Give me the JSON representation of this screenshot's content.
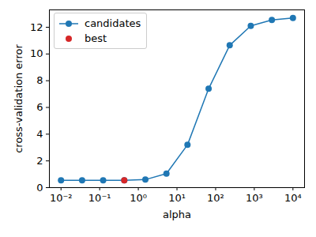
{
  "chart_data": {
    "type": "line",
    "x_label": "alpha",
    "y_label": "cross-validation error",
    "log": "x",
    "grid": false,
    "legend": "upper left",
    "xlim": [
      0.005,
      19953
    ],
    "ylim": [
      0,
      13.3
    ],
    "xticks": [
      {
        "value": 0.01,
        "label": "10⁻²"
      },
      {
        "value": 0.1,
        "label": "10⁻¹"
      },
      {
        "value": 1,
        "label": "10⁰"
      },
      {
        "value": 10,
        "label": "10¹"
      },
      {
        "value": 100,
        "label": "10²"
      },
      {
        "value": 1000,
        "label": "10³"
      },
      {
        "value": 10000,
        "label": "10⁴"
      }
    ],
    "yticks": [
      0,
      2,
      4,
      6,
      8,
      10,
      12
    ],
    "series": [
      {
        "name": "candidates",
        "type": "line",
        "marker": "o",
        "color": "#1f77b4",
        "x": [
          0.01,
          0.0351,
          0.123,
          0.433,
          1.52,
          5.34,
          18.7,
          65.8,
          231,
          811,
          2848,
          10000
        ],
        "values": [
          0.55,
          0.55,
          0.55,
          0.55,
          0.6,
          1.05,
          3.2,
          7.4,
          10.65,
          12.1,
          12.55,
          12.7
        ]
      },
      {
        "name": "best",
        "type": "scatter",
        "marker": "o",
        "color": "#d62728",
        "x": [
          0.433
        ],
        "values": [
          0.55
        ]
      }
    ]
  }
}
